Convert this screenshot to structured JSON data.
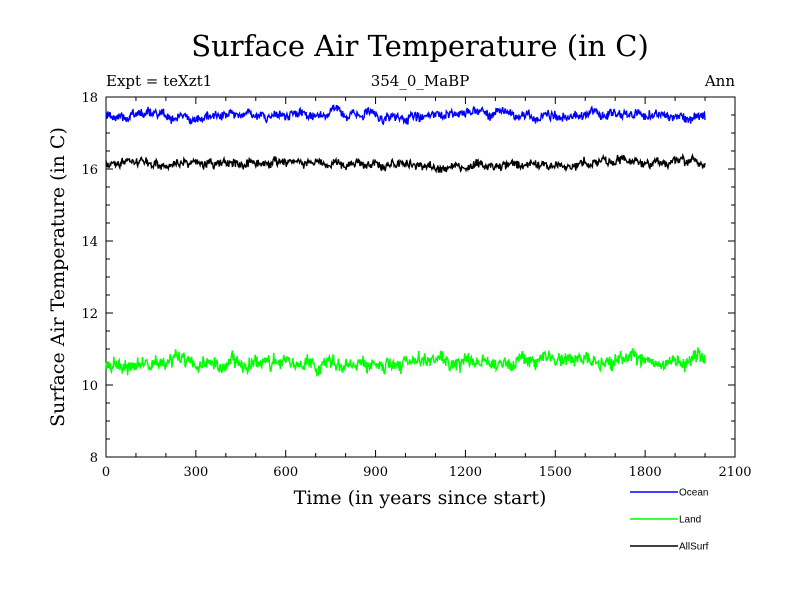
{
  "chart_data": {
    "type": "line",
    "title": "Surface Air Temperature (in C)",
    "subtitle_left": "Expt = teXzt1",
    "subtitle_center": "354_0_MaBP",
    "subtitle_right": "Ann",
    "xlabel": "Time (in years since start)",
    "ylabel": "Surface Air Temperature (in C)",
    "xlim": [
      0,
      2100
    ],
    "ylim": [
      8,
      18
    ],
    "x_ticks": [
      0,
      300,
      600,
      900,
      1200,
      1500,
      1800,
      2100
    ],
    "y_ticks": [
      8,
      10,
      12,
      14,
      16,
      18
    ],
    "x_range_data": [
      0,
      2000
    ],
    "legend_position": "bottom-right",
    "series": [
      {
        "name": "Ocean",
        "color": "#0000ff",
        "mean": 17.5,
        "variability": 0.13
      },
      {
        "name": "Land",
        "color": "#00ff00",
        "mean": 10.6,
        "variability": 0.2
      },
      {
        "name": "AllSurf",
        "color": "#000000",
        "mean": 16.15,
        "variability": 0.12
      }
    ]
  }
}
